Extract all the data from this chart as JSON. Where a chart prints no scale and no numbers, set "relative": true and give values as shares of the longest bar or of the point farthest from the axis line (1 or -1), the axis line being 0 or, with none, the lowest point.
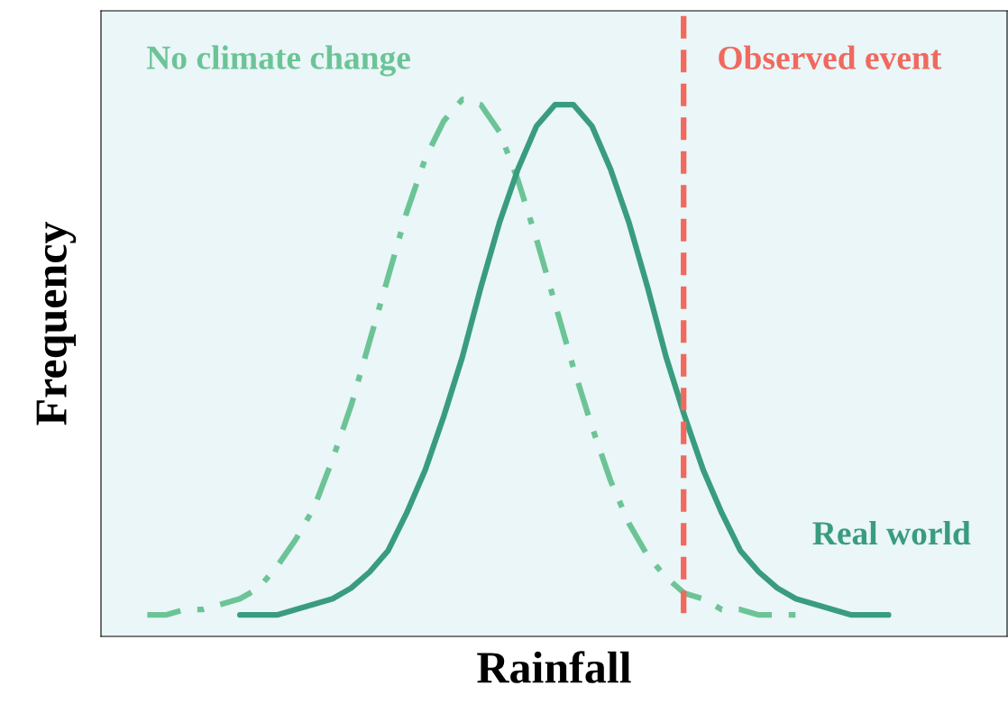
{
  "chart_data": {
    "type": "line",
    "relative": true,
    "xlabel": "Rainfall",
    "ylabel": "Frequency",
    "categories": [
      null,
      null,
      null,
      null,
      null,
      null,
      null,
      null,
      null,
      null,
      null,
      null,
      null,
      null,
      null,
      null,
      null,
      null,
      null,
      null,
      null,
      null,
      null,
      null,
      null,
      null,
      null,
      null,
      null,
      null,
      null,
      null,
      null,
      null,
      null,
      null,
      null,
      null,
      null,
      null,
      null
    ],
    "series": [
      {
        "name": "No climate change",
        "color": "#6cc496",
        "line_style": "dashed",
        "values": [
          0.04,
          0.04,
          0.05,
          0.05,
          0.06,
          0.07,
          0.09,
          0.13,
          0.18,
          0.24,
          0.33,
          0.43,
          0.55,
          0.67,
          0.79,
          0.89,
          0.96,
          1.0,
          0.99,
          0.94,
          0.85,
          0.74,
          0.62,
          0.5,
          0.39,
          0.29,
          0.21,
          0.15,
          0.11,
          0.08,
          0.07,
          0.05,
          0.05,
          0.04,
          0.04,
          0.04,
          null,
          null,
          null,
          null,
          null
        ]
      },
      {
        "name": "Real world",
        "color": "#3a9c7f",
        "line_style": "solid",
        "values": [
          null,
          null,
          null,
          null,
          null,
          0.04,
          0.04,
          0.04,
          0.05,
          0.06,
          0.07,
          0.09,
          0.12,
          0.16,
          0.23,
          0.31,
          0.41,
          0.52,
          0.65,
          0.77,
          0.87,
          0.95,
          0.99,
          0.99,
          0.95,
          0.87,
          0.77,
          0.65,
          0.52,
          0.41,
          0.31,
          0.23,
          0.16,
          0.12,
          0.09,
          0.07,
          0.06,
          0.05,
          0.04,
          0.04,
          0.04
        ]
      }
    ],
    "annotations": [
      "Observed event"
    ],
    "tick_labels": false,
    "legend": false,
    "marker": "none"
  }
}
